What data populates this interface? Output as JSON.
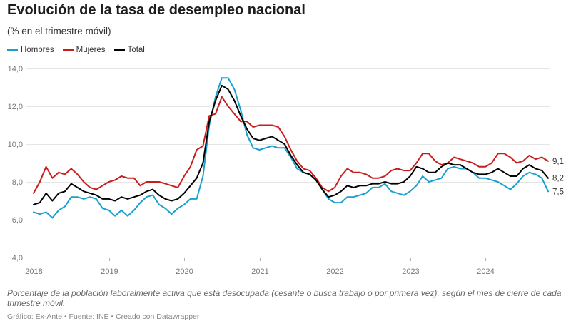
{
  "chart_data": {
    "type": "line",
    "title": "Evolución de la tasa de desempleo nacional",
    "subtitle": "(% en el trimestre móvil)",
    "x": [
      "2018-01",
      "2018-02",
      "2018-03",
      "2018-04",
      "2018-05",
      "2018-06",
      "2018-07",
      "2018-08",
      "2018-09",
      "2018-10",
      "2018-11",
      "2018-12",
      "2019-01",
      "2019-02",
      "2019-03",
      "2019-04",
      "2019-05",
      "2019-06",
      "2019-07",
      "2019-08",
      "2019-09",
      "2019-10",
      "2019-11",
      "2019-12",
      "2020-01",
      "2020-02",
      "2020-03",
      "2020-04",
      "2020-05",
      "2020-06",
      "2020-07",
      "2020-08",
      "2020-09",
      "2020-10",
      "2020-11",
      "2020-12",
      "2021-01",
      "2021-02",
      "2021-03",
      "2021-04",
      "2021-05",
      "2021-06",
      "2021-07",
      "2021-08",
      "2021-09",
      "2021-10",
      "2021-11",
      "2021-12",
      "2022-01",
      "2022-02",
      "2022-03",
      "2022-04",
      "2022-05",
      "2022-06",
      "2022-07",
      "2022-08",
      "2022-09",
      "2022-10",
      "2022-11",
      "2022-12",
      "2023-01",
      "2023-02",
      "2023-03",
      "2023-04",
      "2023-05",
      "2023-06",
      "2023-07",
      "2023-08",
      "2023-09",
      "2023-10",
      "2023-11",
      "2023-12",
      "2024-01",
      "2024-02",
      "2024-03",
      "2024-04",
      "2024-05",
      "2024-06",
      "2024-07",
      "2024-08",
      "2024-09",
      "2024-10",
      "2024-11"
    ],
    "x_tick_labels": [
      "2018",
      "2019",
      "2020",
      "2021",
      "2022",
      "2023",
      "2024"
    ],
    "ylim": [
      4,
      14
    ],
    "y_ticks": [
      {
        "value": 4,
        "label": "4,0"
      },
      {
        "value": 6,
        "label": "6,0"
      },
      {
        "value": 8,
        "label": "8,0"
      },
      {
        "value": 10,
        "label": "10,0"
      },
      {
        "value": 12,
        "label": "12,0"
      },
      {
        "value": 14,
        "label": "14,0"
      }
    ],
    "grid": true,
    "legend": "top-left",
    "series": [
      {
        "name": "Hombres",
        "color": "#18a1cd",
        "end_label": "7,5",
        "values": [
          6.4,
          6.3,
          6.4,
          6.1,
          6.5,
          6.7,
          7.2,
          7.2,
          7.1,
          7.2,
          7.1,
          6.6,
          6.5,
          6.2,
          6.5,
          6.2,
          6.5,
          6.9,
          7.2,
          7.3,
          6.8,
          6.6,
          6.3,
          6.6,
          6.8,
          7.1,
          7.1,
          8.3,
          11.0,
          12.5,
          13.5,
          13.5,
          12.9,
          11.8,
          10.5,
          9.8,
          9.7,
          9.8,
          9.9,
          9.8,
          9.8,
          9.3,
          8.7,
          8.5,
          8.4,
          8.1,
          7.6,
          7.1,
          6.9,
          6.9,
          7.2,
          7.2,
          7.3,
          7.4,
          7.7,
          7.7,
          7.9,
          7.5,
          7.4,
          7.3,
          7.5,
          7.8,
          8.3,
          8.0,
          8.1,
          8.2,
          8.7,
          8.8,
          8.7,
          8.7,
          8.5,
          8.2,
          8.2,
          8.1,
          8.0,
          7.8,
          7.6,
          7.9,
          8.3,
          8.5,
          8.4,
          8.2,
          7.5
        ]
      },
      {
        "name": "Mujeres",
        "color": "#c71e1d",
        "end_label": "9,1",
        "values": [
          7.4,
          8.0,
          8.8,
          8.2,
          8.5,
          8.4,
          8.7,
          8.4,
          8.0,
          7.7,
          7.6,
          7.8,
          8.0,
          8.1,
          8.3,
          8.2,
          8.2,
          7.8,
          8.0,
          8.0,
          8.0,
          7.9,
          7.8,
          7.7,
          8.3,
          8.8,
          9.7,
          9.9,
          11.5,
          11.6,
          12.5,
          12.0,
          11.6,
          11.2,
          11.2,
          10.9,
          11.0,
          11.0,
          11.0,
          10.9,
          10.4,
          9.7,
          9.1,
          8.7,
          8.6,
          8.2,
          7.7,
          7.5,
          7.7,
          8.3,
          8.7,
          8.5,
          8.5,
          8.4,
          8.2,
          8.2,
          8.3,
          8.6,
          8.7,
          8.6,
          8.6,
          9.0,
          9.5,
          9.5,
          9.1,
          8.9,
          9.0,
          9.3,
          9.2,
          9.1,
          9.0,
          8.8,
          8.8,
          9.0,
          9.5,
          9.5,
          9.3,
          9.0,
          9.1,
          9.4,
          9.2,
          9.3,
          9.1
        ]
      },
      {
        "name": "Total",
        "color": "#000000",
        "end_label": "8,2",
        "values": [
          6.8,
          6.9,
          7.4,
          7.0,
          7.4,
          7.5,
          7.9,
          7.7,
          7.5,
          7.4,
          7.3,
          7.1,
          7.1,
          7.0,
          7.2,
          7.1,
          7.2,
          7.3,
          7.5,
          7.6,
          7.3,
          7.1,
          7.0,
          7.1,
          7.4,
          7.8,
          8.2,
          9.0,
          11.2,
          12.3,
          13.1,
          12.9,
          12.3,
          11.5,
          10.8,
          10.3,
          10.2,
          10.3,
          10.4,
          10.2,
          10.0,
          9.4,
          8.9,
          8.5,
          8.4,
          8.1,
          7.6,
          7.2,
          7.3,
          7.5,
          7.8,
          7.7,
          7.8,
          7.8,
          7.9,
          7.9,
          8.0,
          7.9,
          7.9,
          8.0,
          8.3,
          8.8,
          8.7,
          8.5,
          8.5,
          8.8,
          9.0,
          8.9,
          8.9,
          8.7,
          8.5,
          8.4,
          8.4,
          8.5,
          8.7,
          8.5,
          8.3,
          8.3,
          8.7,
          8.9,
          8.7,
          8.6,
          8.2
        ]
      }
    ]
  },
  "footer": {
    "note": "Porcentaje de la población laboralmente activa que está desocupada (cesante o busca trabajo o por primera vez), según el mes de cierre de cada trimestre móvil.",
    "credit": "Gráfico: Ex-Ante • Fuente: INE • Creado con Datawrapper"
  }
}
